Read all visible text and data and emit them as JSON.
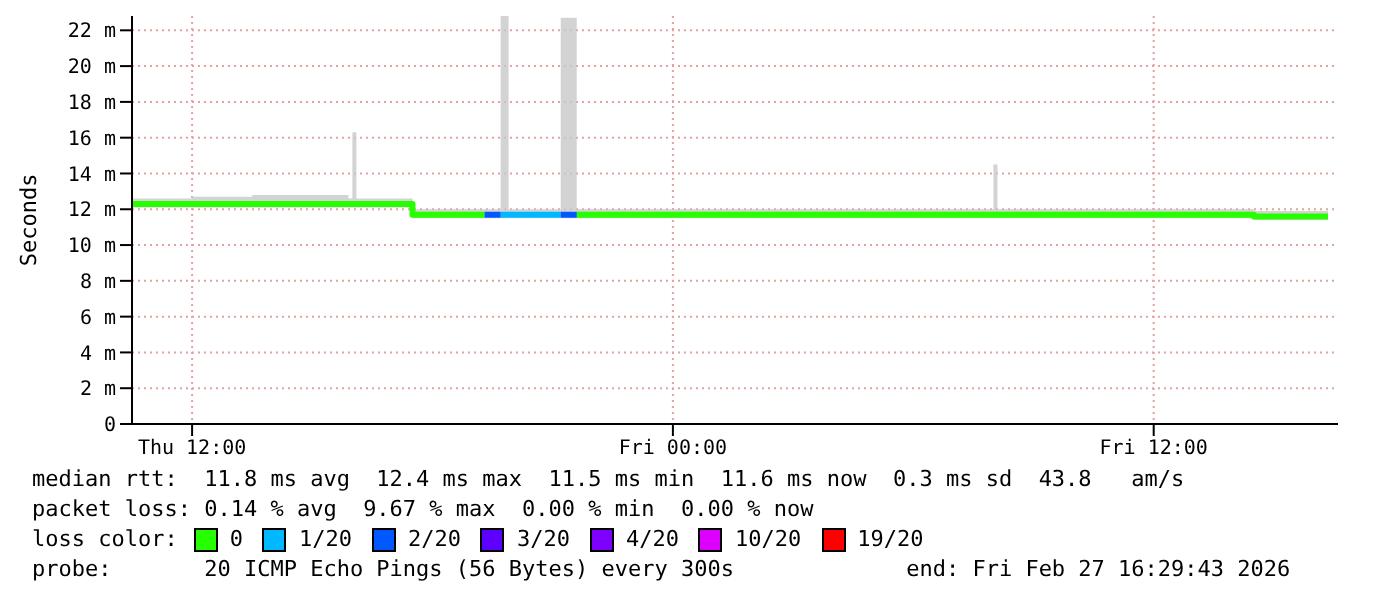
{
  "chart_data": {
    "type": "step",
    "ylabel": "Seconds",
    "legend_title": "loss color:",
    "legend": "bottom",
    "grid": true,
    "marker": "none",
    "x": [
      "2026-02-26T10:30",
      "2026-02-26T12:00",
      "2026-02-26T13:30",
      "2026-02-26T15:54",
      "2026-02-26T16:00",
      "2026-02-26T16:06",
      "2026-02-26T17:30",
      "2026-02-26T19:12",
      "2026-02-26T19:18",
      "2026-02-26T19:42",
      "2026-02-26T19:54",
      "2026-02-26T21:00",
      "2026-02-26T21:12",
      "2026-02-26T21:36",
      "2026-02-27T00:00",
      "2026-02-27T06:00",
      "2026-02-27T07:54",
      "2026-02-27T08:00",
      "2026-02-27T08:06",
      "2026-02-27T12:00",
      "2026-02-27T14:30",
      "2026-02-27T15:00",
      "2026-02-27T16:21"
    ],
    "xlim": [
      "2026-02-26T10:30",
      "2026-02-27T16:36"
    ],
    "xticks": [
      {
        "value": "2026-02-26T12:00",
        "label": "Thu 12:00"
      },
      {
        "value": "2026-02-27T00:00",
        "label": "Fri 00:00"
      },
      {
        "value": "2026-02-27T12:00",
        "label": "Fri 12:00"
      }
    ],
    "ylim": [
      0,
      22.8
    ],
    "yticks": [
      0,
      {
        "value": 2,
        "label": "2 m"
      },
      {
        "value": 4,
        "label": "4 m"
      },
      {
        "value": 6,
        "label": "6 m"
      },
      {
        "value": 8,
        "label": "8 m"
      },
      {
        "value": 10,
        "label": "10 m"
      },
      {
        "value": 12,
        "label": "12 m"
      },
      {
        "value": 14,
        "label": "14 m"
      },
      {
        "value": 16,
        "label": "16 m"
      },
      {
        "value": 18,
        "label": "18 m"
      },
      {
        "value": 20,
        "label": "20 m"
      },
      {
        "value": 22,
        "label": "22 m"
      }
    ],
    "series": [
      {
        "name": "0",
        "color": "#26ff00",
        "values": [
          12.3,
          12.3,
          12.3,
          12.3,
          12.3,
          12.3,
          11.7,
          11.7,
          11.7,
          null,
          null,
          null,
          null,
          11.7,
          11.7,
          11.7,
          11.7,
          11.7,
          11.7,
          11.7,
          11.6,
          11.6,
          11.6
        ],
        "lower": [
          12.1,
          12.1,
          12.1,
          12.1,
          12.1,
          12.1,
          11.5,
          11.5,
          11.5,
          11.5,
          11.5,
          11.5,
          11.5,
          11.5,
          11.5,
          11.5,
          11.5,
          11.5,
          11.5,
          11.5,
          11.4,
          11.4,
          11.4
        ],
        "upper": [
          12.6,
          12.7,
          12.8,
          12.6,
          16.3,
          12.6,
          12.0,
          12.0,
          12.0,
          22.8,
          12.0,
          12.0,
          22.7,
          12.0,
          12.0,
          12.0,
          12.0,
          14.5,
          12.0,
          12.0,
          11.9,
          11.9,
          11.9
        ]
      },
      {
        "name": "1/20",
        "color": "#00b8ff",
        "values": [
          null,
          null,
          null,
          null,
          null,
          null,
          null,
          null,
          null,
          11.7,
          11.7,
          11.7,
          11.7,
          null,
          null,
          null,
          null,
          null,
          null,
          null,
          null,
          null,
          null
        ]
      },
      {
        "name": "2/20",
        "color": "#0059ff",
        "values": [
          null,
          null,
          null,
          null,
          null,
          null,
          null,
          null,
          11.7,
          11.7,
          null,
          null,
          11.7,
          11.7,
          null,
          null,
          null,
          null,
          null,
          null,
          null,
          null,
          null
        ]
      },
      {
        "name": "3/20",
        "color": "#5e00ff",
        "values": [
          null,
          null,
          null,
          null,
          null,
          null,
          null,
          null,
          null,
          null,
          null,
          null,
          null,
          null,
          null,
          null,
          null,
          null,
          null,
          null,
          null,
          null,
          null
        ]
      },
      {
        "name": "4/20",
        "color": "#7e00ff",
        "values": [
          null,
          null,
          null,
          null,
          null,
          null,
          null,
          null,
          null,
          null,
          null,
          null,
          null,
          null,
          null,
          null,
          null,
          null,
          null,
          null,
          null,
          null,
          null
        ]
      },
      {
        "name": "10/20",
        "color": "#dd00ff",
        "values": [
          null,
          null,
          null,
          null,
          null,
          null,
          null,
          null,
          null,
          null,
          null,
          null,
          null,
          null,
          null,
          null,
          null,
          null,
          null,
          null,
          null,
          null,
          null
        ]
      },
      {
        "name": "19/20",
        "color": "#ff0000",
        "values": [
          null,
          null,
          null,
          null,
          null,
          null,
          null,
          null,
          null,
          null,
          null,
          null,
          null,
          null,
          null,
          null,
          null,
          null,
          null,
          null,
          null,
          null,
          null
        ]
      }
    ],
    "annotations": [
      "median rtt:  11.8 ms avg  12.4 ms max  11.5 ms min  11.6 ms now  0.3 ms sd  43.8   am/s",
      "packet loss: 0.14 % avg  9.67 % max  0.00 % min  0.00 % now",
      "probe:       20 ICMP Echo Pings (56 Bytes) every 300s             end: Fri Feb 27 16:29:43 2026"
    ]
  }
}
